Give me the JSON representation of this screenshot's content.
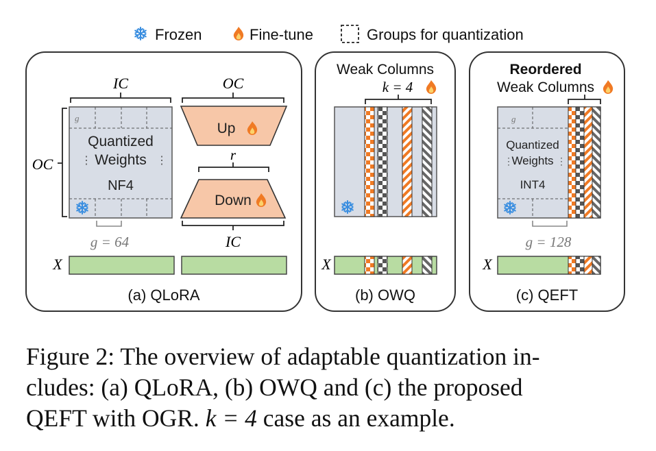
{
  "legend": {
    "frozen_label": "Frozen",
    "finetune_label": "Fine-tune",
    "groups_label": "Groups for quantization",
    "frozen_icon": "snowflake-icon",
    "finetune_icon": "flame-icon",
    "groups_icon": "dashed-square-icon"
  },
  "panel_a": {
    "title": "(a) QLoRA",
    "ic_top": "IC",
    "oc_top": "OC",
    "oc_left": "OC",
    "g_label": "g",
    "weights_line1": "Quantized",
    "weights_line2": "Weights",
    "weights_line3": "NF4",
    "group_size": "g = 64",
    "up_label": "Up",
    "down_label": "Down",
    "r_label": "r",
    "ic_bottom": "IC",
    "x_label": "X"
  },
  "panel_b": {
    "title": "(b) OWQ",
    "header": "Weak Columns",
    "k_label": "k = 4",
    "x_label": "X"
  },
  "panel_c": {
    "title": "(c) QEFT",
    "header_bold": "Reordered",
    "header": "Weak Columns",
    "g_label": "g",
    "weights_line1": "Quantized",
    "weights_line2": "Weights",
    "weights_line3": "INT4",
    "group_size": "g = 128",
    "x_label": "X"
  },
  "caption": {
    "line1": "Figure 2: The overview of adaptable quantization in-",
    "line2": "cludes: (a) QLoRA, (b) OWQ and (c) the proposed",
    "line3_pre": "QEFT with OGR.",
    "line3_math": "k = 4",
    "line3_post": "case as an example."
  },
  "colors": {
    "weights_fill": "#d8dde6",
    "adapter_fill": "#f7c7a8",
    "input_fill": "#b8dca2",
    "orange": "#f07a24",
    "checker_dark": "#555555",
    "stripe_dark": "#666666",
    "snowflake": "#3a8ee0"
  }
}
